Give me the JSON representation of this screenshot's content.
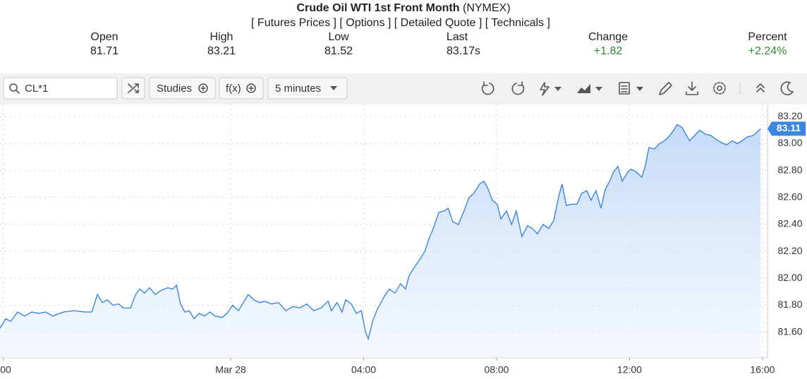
{
  "header": {
    "title": "Crude Oil WTI 1st Front Month",
    "exchange": "(NYMEX)",
    "links": [
      "[ Futures Prices ]",
      "[ Options ]",
      "[ Detailed Quote ]",
      "[ Technicals ]"
    ]
  },
  "quote": [
    {
      "label": "Open",
      "value": "81.71"
    },
    {
      "label": "High",
      "value": "83.21"
    },
    {
      "label": "Low",
      "value": "81.52"
    },
    {
      "label": "Last",
      "value": "83.17s"
    },
    {
      "label": "Change",
      "value": "+1.82"
    },
    {
      "label": "Percent",
      "value": "+2.24%"
    }
  ],
  "toolbar": {
    "symbol": "CL*1",
    "studies": "Studies",
    "function": "f(x)",
    "interval": "5 minutes"
  },
  "chart_data": {
    "type": "area",
    "x": [
      -6.94,
      -6.77,
      -6.62,
      -6.41,
      -6.2,
      -5.99,
      -5.77,
      -5.56,
      -5.35,
      -5.03,
      -4.71,
      -4.39,
      -4.18,
      -4.01,
      -3.86,
      -3.71,
      -3.54,
      -3.37,
      -3.23,
      -3.01,
      -2.86,
      -2.74,
      -2.59,
      -2.44,
      -2.27,
      -2.1,
      -1.89,
      -1.74,
      -1.63,
      -1.51,
      -1.38,
      -1.25,
      -1.1,
      -0.95,
      -0.79,
      -0.62,
      -0.47,
      -0.25,
      -0.11,
      0.06,
      0.23,
      0.38,
      0.53,
      0.7,
      0.87,
      1.02,
      1.23,
      1.44,
      1.66,
      1.87,
      2.08,
      2.29,
      2.5,
      2.72,
      2.93,
      3.03,
      3.2,
      3.35,
      3.46,
      3.63,
      3.78,
      3.93,
      4.06,
      4.14,
      4.27,
      4.41,
      4.63,
      4.77,
      4.94,
      5.11,
      5.26,
      5.37,
      5.52,
      5.69,
      5.84,
      5.96,
      6.11,
      6.26,
      6.43,
      6.54,
      6.68,
      6.85,
      7.02,
      7.17,
      7.32,
      7.49,
      7.62,
      7.75,
      7.87,
      8.02,
      8.13,
      8.3,
      8.45,
      8.59,
      8.76,
      8.93,
      9.08,
      9.23,
      9.4,
      9.57,
      9.72,
      9.87,
      9.97,
      10.1,
      10.25,
      10.42,
      10.56,
      10.71,
      10.84,
      10.99,
      11.14,
      11.27,
      11.42,
      11.52,
      11.65,
      11.78,
      11.95,
      12.05,
      12.2,
      12.37,
      12.48,
      12.58,
      12.75,
      12.9,
      13.05,
      13.18,
      13.33,
      13.43,
      13.58,
      13.69,
      13.81,
      13.96,
      14.11,
      14.28,
      14.45,
      14.6,
      14.75,
      14.92,
      15.09,
      15.24,
      15.38,
      15.55,
      15.72,
      15.81,
      15.94
    ],
    "series": [
      {
        "color": "#3a86e0",
        "values": [
          81.63,
          81.7,
          81.68,
          81.75,
          81.72,
          81.75,
          81.74,
          81.75,
          81.72,
          81.75,
          81.76,
          81.75,
          81.75,
          81.88,
          81.82,
          81.84,
          81.8,
          81.81,
          81.78,
          81.78,
          81.88,
          81.92,
          81.89,
          81.93,
          81.88,
          81.91,
          81.93,
          81.92,
          81.95,
          81.81,
          81.75,
          81.76,
          81.7,
          81.74,
          81.72,
          81.75,
          81.72,
          81.71,
          81.74,
          81.8,
          81.76,
          81.82,
          81.88,
          81.84,
          81.82,
          81.83,
          81.81,
          81.82,
          81.76,
          81.79,
          81.78,
          81.81,
          81.76,
          81.78,
          81.83,
          81.76,
          81.82,
          81.75,
          81.84,
          81.81,
          81.74,
          81.76,
          81.6,
          81.55,
          81.68,
          81.77,
          81.87,
          81.92,
          81.89,
          81.96,
          81.92,
          82.02,
          82.08,
          82.14,
          82.2,
          82.29,
          82.38,
          82.49,
          82.5,
          82.52,
          82.42,
          82.4,
          82.5,
          82.6,
          82.63,
          82.7,
          82.72,
          82.66,
          82.58,
          82.55,
          82.44,
          82.5,
          82.4,
          82.5,
          82.31,
          82.39,
          82.37,
          82.33,
          82.4,
          82.37,
          82.43,
          82.61,
          82.7,
          82.54,
          82.55,
          82.55,
          82.63,
          82.65,
          82.58,
          82.65,
          82.52,
          82.66,
          82.73,
          82.79,
          82.83,
          82.72,
          82.79,
          82.81,
          82.79,
          82.75,
          82.84,
          82.97,
          82.96,
          83.0,
          83.02,
          83.05,
          83.1,
          83.14,
          83.12,
          83.07,
          83.02,
          83.06,
          83.1,
          83.07,
          83.06,
          83.03,
          83.01,
          82.99,
          83.02,
          83.0,
          83.02,
          83.05,
          83.06,
          83.08,
          83.11
        ]
      }
    ],
    "xlim": [
      -6.94,
      16.15
    ],
    "xticks": [
      {
        "value": -6.84,
        "label": "00"
      },
      {
        "value": 0,
        "label": "Mar 28"
      },
      {
        "value": 4,
        "label": "04:00"
      },
      {
        "value": 8,
        "label": "08:00"
      },
      {
        "value": 12,
        "label": "12:00"
      },
      {
        "value": 16,
        "label": "16:00"
      }
    ],
    "ylim": [
      81.41,
      83.29
    ],
    "yticks": [
      {
        "value": 81.6,
        "label": "81.60"
      },
      {
        "value": 81.8,
        "label": "81.80"
      },
      {
        "value": 82.0,
        "label": "82.00"
      },
      {
        "value": 82.2,
        "label": "82.20"
      },
      {
        "value": 82.4,
        "label": "82.40"
      },
      {
        "value": 82.6,
        "label": "82.60"
      },
      {
        "value": 82.8,
        "label": "82.80"
      },
      {
        "value": 83.0,
        "label": "83.00"
      },
      {
        "value": 83.2,
        "label": "83.20"
      }
    ],
    "grid": true
  }
}
